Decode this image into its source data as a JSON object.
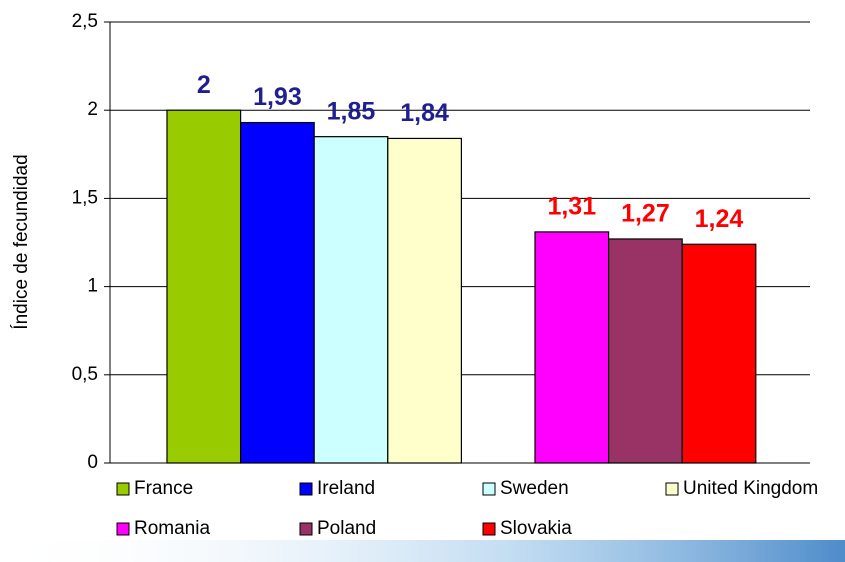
{
  "chart_data": {
    "type": "bar",
    "ylabel": "Índice de fecundidad",
    "ylim": [
      0,
      2.5
    ],
    "yticks": [
      0,
      {
        "value": 0.5,
        "label": "0,5"
      },
      1,
      {
        "value": 1.5,
        "label": "1,5"
      },
      2,
      {
        "value": 2.5,
        "label": "2,5"
      }
    ],
    "grid": true,
    "series": [
      {
        "name": "France",
        "color": "#99cc00",
        "values": [
          2
        ],
        "value_labels": [
          "2"
        ],
        "label_color": "#1f1f8f"
      },
      {
        "name": "Ireland",
        "color": "#0000ff",
        "values": [
          1.93
        ],
        "value_labels": [
          "1,93"
        ],
        "label_color": "#1f1f8f"
      },
      {
        "name": "Sweden",
        "color": "#ccffff",
        "values": [
          1.85
        ],
        "value_labels": [
          "1,85"
        ],
        "label_color": "#1f1f8f"
      },
      {
        "name": "United Kingdom",
        "color": "#ffffcc",
        "values": [
          1.84
        ],
        "value_labels": [
          "1,84"
        ],
        "label_color": "#1f1f8f"
      },
      {
        "name": "Romania",
        "color": "#ff00ff",
        "values": [
          1.31
        ],
        "value_labels": [
          "1,31"
        ],
        "label_color": "#ff0000"
      },
      {
        "name": "Poland",
        "color": "#993366",
        "values": [
          1.27
        ],
        "value_labels": [
          "1,27"
        ],
        "label_color": "#ff0000"
      },
      {
        "name": "Slovakia",
        "color": "#ff0000",
        "values": [
          1.24
        ],
        "value_labels": [
          "1,24"
        ],
        "label_color": "#ff0000"
      }
    ]
  }
}
